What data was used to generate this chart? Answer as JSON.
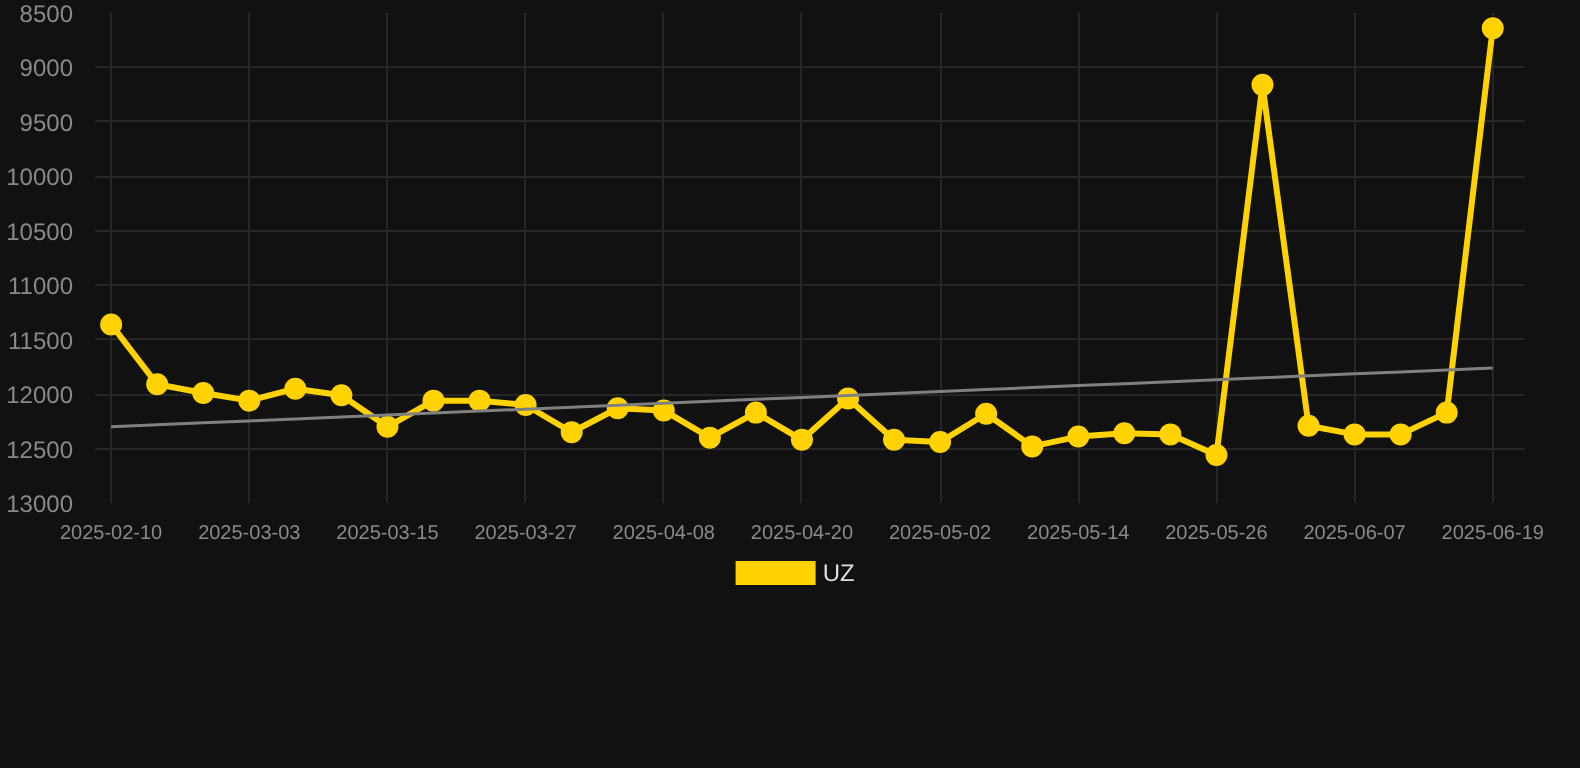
{
  "chart_data": {
    "type": "line",
    "categories": [
      "2025-02-10",
      null,
      null,
      "2025-03-03",
      null,
      null,
      "2025-03-15",
      null,
      null,
      "2025-03-27",
      null,
      null,
      "2025-04-08",
      null,
      null,
      "2025-04-20",
      null,
      null,
      "2025-05-02",
      null,
      null,
      "2025-05-14",
      null,
      null,
      "2025-05-26",
      null,
      null,
      "2025-06-07",
      null,
      null,
      "2025-06-19"
    ],
    "series": [
      {
        "name": "UZ",
        "color": "#ffd200",
        "marker": "circle",
        "values": [
          11360,
          11910,
          11990,
          12060,
          11950,
          12010,
          12300,
          12060,
          12060,
          12100,
          12350,
          12130,
          12150,
          12400,
          12170,
          12420,
          12040,
          12420,
          12440,
          12180,
          12480,
          12390,
          12360,
          12370,
          12560,
          9160,
          12290,
          12370,
          12370,
          12170,
          8640
        ]
      },
      {
        "type": "line",
        "color": "#808080",
        "marker": "none",
        "values": [
          12300,
          12282,
          12264,
          12246,
          12228,
          12210,
          12192,
          12174,
          12156,
          12138,
          12120,
          12102,
          12084,
          12066,
          12048,
          12030,
          12012,
          11994,
          11976,
          11958,
          11940,
          11922,
          11904,
          11886,
          11868,
          11850,
          11832,
          11814,
          11796,
          11778,
          11760
        ]
      }
    ],
    "ylim": [
      13000,
      8500
    ],
    "yticks": [
      8500,
      9000,
      9500,
      10000,
      10500,
      11000,
      11500,
      12000,
      12500,
      13000
    ],
    "grid": true,
    "legend": "bottom"
  }
}
